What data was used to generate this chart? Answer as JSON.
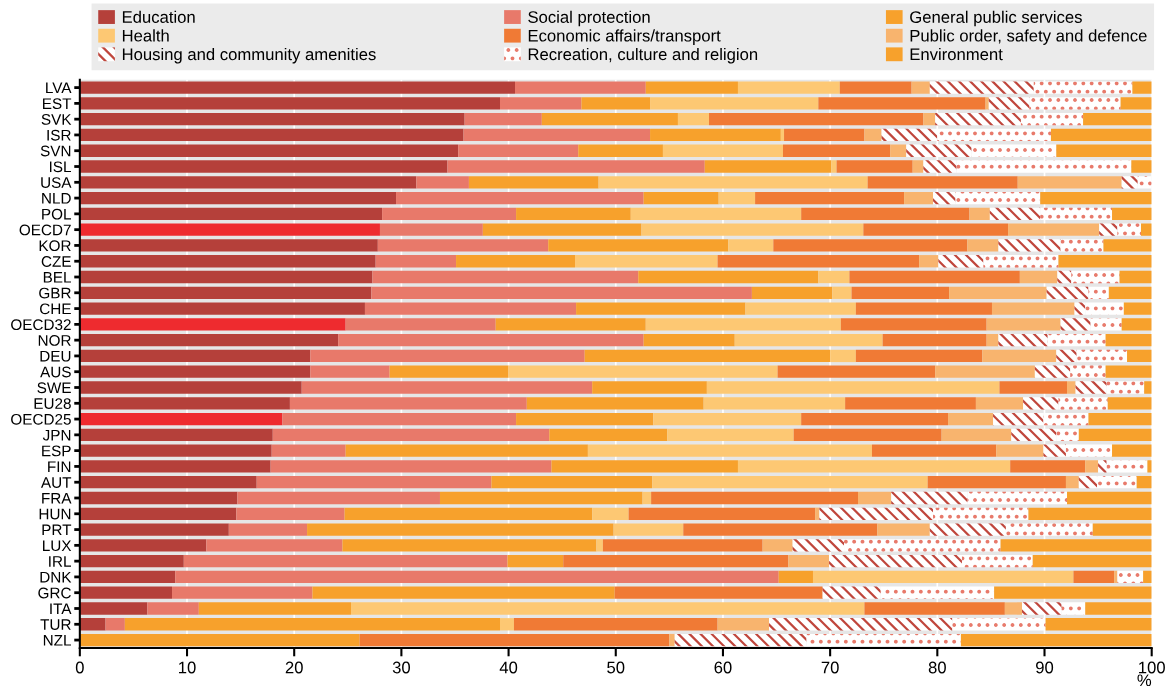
{
  "chart_data": {
    "type": "bar",
    "orientation": "horizontal",
    "stacked": true,
    "xlabel": "%",
    "legend": "top",
    "grid": "x",
    "xlim": [
      0,
      100
    ],
    "xticks": [
      0,
      10,
      20,
      30,
      40,
      50,
      60,
      70,
      80,
      90,
      100
    ],
    "categories": [
      "LVA",
      "EST",
      "SVK",
      "ISR",
      "SVN",
      "ISL",
      "USA",
      "NLD",
      "POL",
      "OECD7",
      "KOR",
      "CZE",
      "BEL",
      "GBR",
      "CHE",
      "OECD32",
      "NOR",
      "DEU",
      "AUS",
      "SWE",
      "EU28",
      "OECD25",
      "JPN",
      "ESP",
      "FIN",
      "AUT",
      "FRA",
      "HUN",
      "PRT",
      "LUX",
      "IRL",
      "DNK",
      "GRC",
      "ITA",
      "TUR",
      "NZL"
    ],
    "series": [
      {
        "name": "Education",
        "color": "#b5403a",
        "colors": [
          "#b5403a",
          "#b5403a",
          "#b5403a",
          "#b5403a",
          "#b5403a",
          "#b5403a",
          "#b5403a",
          "#b5403a",
          "#b5403a",
          "#ee2b2f",
          "#b5403a",
          "#b5403a",
          "#b5403a",
          "#b5403a",
          "#b5403a",
          "#ee2b2f",
          "#b5403a",
          "#b5403a",
          "#b5403a",
          "#b5403a",
          "#b5403a",
          "#ee2b2f",
          "#b5403a",
          "#b5403a",
          "#b5403a",
          "#b5403a",
          "#b5403a",
          "#b5403a",
          "#b5403a",
          "#b5403a",
          "#b5403a",
          "#b5403a",
          "#b5403a",
          "#b5403a",
          "#b5403a",
          "#b5403a"
        ],
        "values": [
          40.6,
          39.2,
          35.9,
          35.8,
          35.3,
          34.3,
          31.4,
          29.5,
          28.2,
          28.0,
          27.8,
          27.6,
          27.3,
          27.2,
          26.6,
          24.8,
          24.1,
          21.5,
          21.5,
          20.7,
          19.6,
          18.9,
          18.0,
          17.9,
          17.8,
          16.5,
          14.7,
          14.6,
          13.9,
          11.8,
          9.7,
          8.9,
          8.6,
          6.3,
          2.4,
          0
        ]
      },
      {
        "name": "Social protection",
        "color": "#e8796a",
        "values": [
          12.2,
          7.6,
          7.2,
          17.4,
          11.2,
          24.0,
          4.9,
          23.1,
          12.5,
          9.6,
          15.9,
          7.5,
          24.8,
          35.5,
          19.7,
          14.0,
          28.5,
          25.6,
          7.4,
          27.1,
          22.1,
          21.8,
          25.8,
          6.9,
          26.2,
          21.9,
          18.9,
          10.1,
          7.3,
          12.7,
          30.2,
          56.3,
          13.1,
          4.8,
          1.8,
          0
        ]
      },
      {
        "name": "General public services",
        "color": "#f7a12c",
        "values": [
          8.6,
          6.4,
          12.7,
          12.2,
          7.9,
          11.8,
          12.1,
          7.0,
          10.7,
          14.8,
          16.8,
          11.1,
          16.8,
          7.5,
          15.8,
          14.0,
          8.5,
          22.9,
          11.1,
          10.7,
          16.5,
          12.8,
          11.0,
          22.6,
          17.4,
          15.0,
          18.9,
          23.1,
          28.6,
          23.7,
          5.2,
          3.2,
          28.2,
          14.2,
          35.0,
          26.1
        ]
      },
      {
        "name": "Health",
        "color": "#fdc873",
        "values": [
          9.5,
          15.7,
          2.9,
          0.3,
          11.2,
          0.5,
          25.1,
          3.4,
          15.9,
          20.7,
          4.2,
          13.3,
          2.9,
          1.8,
          10.3,
          18.2,
          13.8,
          2.4,
          25.1,
          27.3,
          13.2,
          13.8,
          11.8,
          26.5,
          25.4,
          25.7,
          0.8,
          3.4,
          6.5,
          0.6,
          0,
          24.3,
          0,
          47.9,
          1.3,
          0
        ]
      },
      {
        "name": "Economic affairs/transport",
        "color": "#f07a35",
        "values": [
          6.7,
          15.6,
          20.0,
          7.5,
          10.0,
          7.1,
          14.0,
          13.9,
          15.7,
          13.5,
          18.1,
          18.8,
          15.9,
          9.1,
          12.7,
          13.6,
          9.7,
          11.8,
          14.7,
          6.3,
          12.2,
          13.7,
          13.8,
          11.6,
          7.0,
          12.9,
          19.3,
          17.4,
          18.1,
          14.9,
          21.0,
          3.8,
          19.4,
          13.1,
          19.0,
          28.9
        ]
      },
      {
        "name": "Public order, safety and defence",
        "color": "#f8b46e",
        "values": [
          1.7,
          0.3,
          1.1,
          1.6,
          1.5,
          1.0,
          9.7,
          2.7,
          1.9,
          8.5,
          2.9,
          1.8,
          3.5,
          9.1,
          7.7,
          6.9,
          1.1,
          6.9,
          9.3,
          0.8,
          4.4,
          4.2,
          6.5,
          4.4,
          1.2,
          1.2,
          3.1,
          0.4,
          4.9,
          2.8,
          3.8,
          0.3,
          0,
          1.6,
          4.8,
          0.5
        ]
      },
      {
        "name": "Housing and community amenities",
        "color": "#c0463c",
        "values": [
          9.7,
          3.8,
          8.0,
          5.2,
          6.1,
          3.1,
          1.5,
          2.1,
          4.7,
          1.7,
          5.8,
          4.2,
          1.3,
          3.9,
          1.0,
          2.8,
          4.6,
          1.9,
          3.3,
          2.9,
          3.3,
          4.7,
          4.2,
          2.1,
          0.8,
          1.7,
          7.1,
          10.6,
          7.1,
          4.8,
          12.4,
          0,
          5.4,
          3.7,
          17.1,
          12.3
        ]
      },
      {
        "name": "Recreation, culture and religion",
        "color": "#e8796a",
        "values": [
          9.2,
          8.5,
          5.8,
          10.6,
          7.9,
          16.3,
          1.3,
          7.9,
          6.7,
          2.2,
          4.0,
          7.0,
          4.5,
          1.9,
          3.6,
          2.9,
          5.4,
          4.7,
          3.3,
          3.5,
          4.6,
          4.2,
          2.1,
          4.3,
          3.8,
          3.7,
          9.3,
          8.9,
          8.1,
          14.6,
          6.6,
          2.4,
          10.6,
          2.2,
          8.7,
          14.4
        ]
      },
      {
        "name": "Environment",
        "color": "#f7a12c",
        "values": [
          1.8,
          2.9,
          6.4,
          9.4,
          8.9,
          1.9,
          0,
          10.4,
          3.7,
          1.0,
          4.5,
          8.7,
          3.0,
          4.0,
          2.6,
          2.8,
          4.3,
          2.3,
          4.3,
          0.7,
          4.1,
          5.9,
          6.8,
          3.7,
          0.4,
          1.4,
          7.9,
          11.5,
          5.5,
          14.1,
          11.1,
          0.8,
          14.7,
          6.2,
          9.9,
          17.8
        ]
      }
    ]
  }
}
